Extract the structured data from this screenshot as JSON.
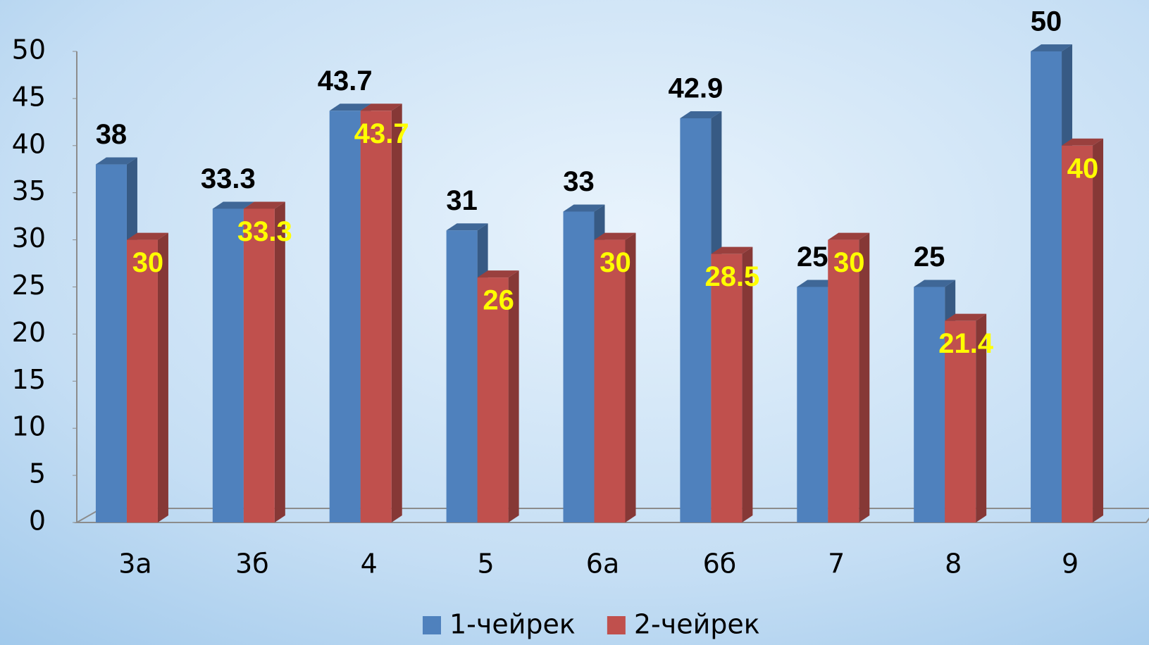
{
  "chart_data": {
    "type": "bar3d",
    "categories": [
      "3а",
      "3б",
      "4",
      "5",
      "6а",
      "6б",
      "7",
      "8",
      "9"
    ],
    "series": [
      {
        "name": "1-чейрек",
        "color": "#4f81bd",
        "label_color": "#000000",
        "values": [
          38,
          33.3,
          43.7,
          31,
          33,
          42.9,
          25,
          25,
          50
        ]
      },
      {
        "name": "2-чейрек",
        "color": "#c0504d",
        "label_color": "#ffff00",
        "values": [
          30,
          33.3,
          43.7,
          26,
          30,
          28.5,
          30,
          21.4,
          40
        ]
      }
    ],
    "ylim": [
      0,
      50
    ],
    "yticks": [
      0,
      5,
      10,
      15,
      20,
      25,
      30,
      35,
      40,
      45,
      50
    ],
    "legend": "bottom"
  }
}
